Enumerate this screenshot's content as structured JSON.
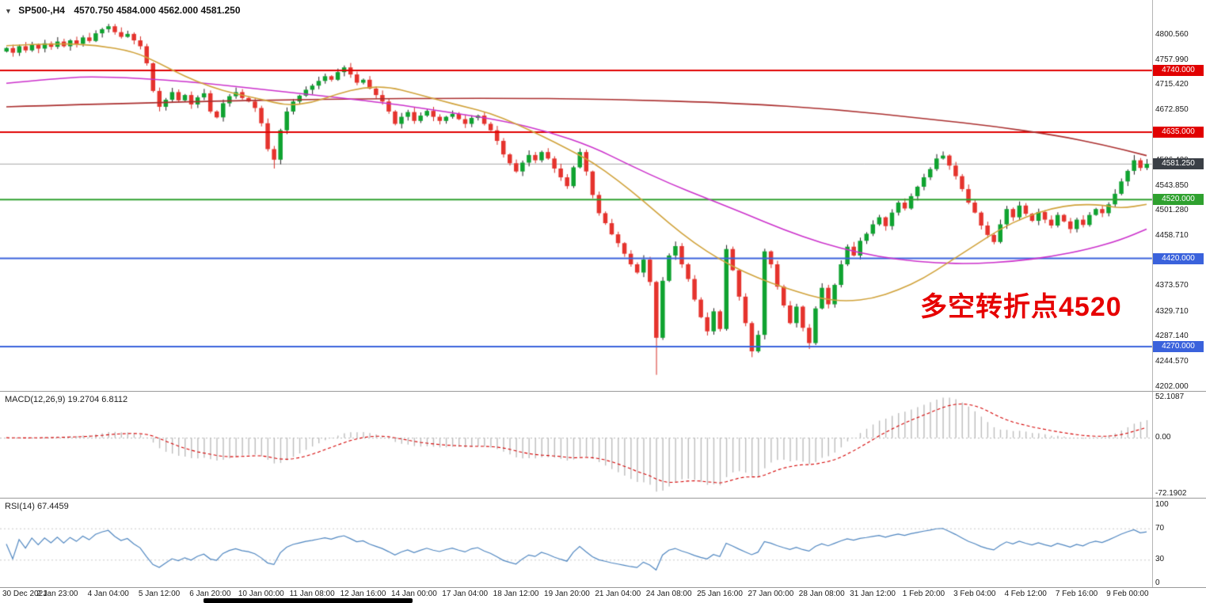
{
  "header": {
    "collapse_icon": "▼",
    "symbol_period": "SP500-,H4",
    "ohlc_line": "4570.750 4584.000 4562.000 4581.250"
  },
  "annotation": {
    "text": "多空转折点4520",
    "color": "#e60000"
  },
  "chart_data": {
    "type": "candlestick",
    "symbol": "SP500-",
    "timeframe": "H4",
    "open": "4570.750",
    "high": "4584.000",
    "low": "4562.000",
    "close": "4581.250",
    "ylim": [
      4202,
      4818
    ],
    "y_tick_labels": [
      "4800.560",
      "4757.990",
      "4715.420",
      "4672.850",
      "4628.990",
      "4586.420",
      "4543.850",
      "4501.280",
      "4458.710",
      "4416.140",
      "4373.570",
      "4329.710",
      "4287.140",
      "4244.570",
      "4202.000"
    ],
    "x_tick_labels": [
      "30 Dec 2021",
      "2 Jan 23:00",
      "4 Jan 04:00",
      "5 Jan 12:00",
      "6 Jan 20:00",
      "10 Jan 00:00",
      "11 Jan 08:00",
      "12 Jan 16:00",
      "14 Jan 00:00",
      "17 Jan 04:00",
      "18 Jan 12:00",
      "19 Jan 20:00",
      "21 Jan 04:00",
      "24 Jan 08:00",
      "25 Jan 16:00",
      "27 Jan 00:00",
      "28 Jan 08:00",
      "31 Jan 12:00",
      "1 Feb 20:00",
      "3 Feb 04:00",
      "4 Feb 12:00",
      "7 Feb 16:00",
      "9 Feb 00:00"
    ],
    "current_price": {
      "value": 4581.25,
      "label": "4581.250",
      "badge_color": "#3a3f46",
      "line_color": "#a6a6a6"
    },
    "horizontal_levels": [
      {
        "value": 4740,
        "label": "4740.000",
        "color": "#e10000"
      },
      {
        "value": 4635,
        "label": "4635.000",
        "color": "#e10000"
      },
      {
        "value": 4520,
        "label": "4520.000",
        "color": "#2fa12f"
      },
      {
        "value": 4420,
        "label": "4420.000",
        "color": "#3a62dc"
      },
      {
        "value": 4270,
        "label": "4270.000",
        "color": "#3a62dc"
      }
    ],
    "candle_colors": {
      "up": "#0fa330",
      "down": "#e5332d",
      "up_wick": "#1d1d1d",
      "down_wick": "#d42a24"
    },
    "closes": [
      4778,
      4770,
      4781,
      4774,
      4784,
      4777,
      4786,
      4780,
      4789,
      4781,
      4791,
      4785,
      4796,
      4790,
      4803,
      4810,
      4815,
      4805,
      4797,
      4802,
      4791,
      4781,
      4752,
      4705,
      4678,
      4690,
      4703,
      4689,
      4698,
      4682,
      4694,
      4701,
      4670,
      4660,
      4684,
      4696,
      4703,
      4693,
      4687,
      4676,
      4650,
      4606,
      4588,
      4638,
      4670,
      4687,
      4697,
      4707,
      4714,
      4722,
      4730,
      4724,
      4737,
      4745,
      4733,
      4719,
      4724,
      4709,
      4698,
      4687,
      4670,
      4649,
      4661,
      4669,
      4654,
      4663,
      4671,
      4661,
      4654,
      4661,
      4666,
      4657,
      4649,
      4659,
      4663,
      4649,
      4638,
      4620,
      4597,
      4582,
      4568,
      4583,
      4596,
      4587,
      4601,
      4590,
      4573,
      4558,
      4543,
      4575,
      4601,
      4568,
      4528,
      4497,
      4480,
      4461,
      4446,
      4428,
      4410,
      4396,
      4418,
      4380,
      4285,
      4382,
      4425,
      4441,
      4410,
      4385,
      4350,
      4320,
      4296,
      4330,
      4300,
      4436,
      4400,
      4355,
      4310,
      4262,
      4290,
      4432,
      4410,
      4372,
      4340,
      4310,
      4338,
      4302,
      4276,
      4335,
      4370,
      4342,
      4375,
      4410,
      4440,
      4425,
      4450,
      4462,
      4478,
      4490,
      4475,
      4498,
      4515,
      4505,
      4526,
      4542,
      4558,
      4572,
      4590,
      4595,
      4578,
      4560,
      4538,
      4515,
      4498,
      4476,
      4460,
      4448,
      4478,
      4504,
      4490,
      4510,
      4496,
      4484,
      4499,
      4486,
      4476,
      4494,
      4483,
      4470,
      4486,
      4477,
      4494,
      4504,
      4497,
      4512,
      4530,
      4551,
      4569,
      4587,
      4574,
      4581
    ],
    "wick_overrides": {
      "16": {
        "high": 4819
      },
      "42": {
        "low": 4573
      },
      "90": {
        "high": 4607
      },
      "102": {
        "low": 4222
      },
      "117": {
        "low": 4252
      },
      "126": {
        "low": 4266
      },
      "147": {
        "high": 4602
      },
      "177": {
        "high": 4596
      }
    },
    "moving_averages": [
      {
        "name": "ma-slow",
        "color": "#aa2e2e",
        "anchors": [
          [
            0,
            4678
          ],
          [
            25,
            4686
          ],
          [
            50,
            4691
          ],
          [
            75,
            4693
          ],
          [
            95,
            4691
          ],
          [
            115,
            4684
          ],
          [
            130,
            4674
          ],
          [
            145,
            4657
          ],
          [
            155,
            4645
          ],
          [
            165,
            4629
          ],
          [
            172,
            4614
          ],
          [
            179,
            4595
          ]
        ]
      },
      {
        "name": "ma-mid",
        "color": "#cb30cb",
        "anchors": [
          [
            0,
            4718
          ],
          [
            8,
            4726
          ],
          [
            14,
            4730
          ],
          [
            28,
            4722
          ],
          [
            45,
            4702
          ],
          [
            60,
            4684
          ],
          [
            70,
            4668
          ],
          [
            78,
            4654
          ],
          [
            85,
            4636
          ],
          [
            92,
            4610
          ],
          [
            98,
            4578
          ],
          [
            104,
            4548
          ],
          [
            110,
            4522
          ],
          [
            116,
            4496
          ],
          [
            122,
            4469
          ],
          [
            128,
            4446
          ],
          [
            134,
            4429
          ],
          [
            140,
            4418
          ],
          [
            146,
            4412
          ],
          [
            152,
            4411
          ],
          [
            158,
            4415
          ],
          [
            164,
            4423
          ],
          [
            170,
            4436
          ],
          [
            175,
            4452
          ],
          [
            179,
            4470
          ]
        ]
      },
      {
        "name": "ma-fast",
        "color": "#d0a23a",
        "anchors": [
          [
            0,
            4782
          ],
          [
            8,
            4786
          ],
          [
            14,
            4783
          ],
          [
            20,
            4772
          ],
          [
            24,
            4752
          ],
          [
            28,
            4730
          ],
          [
            32,
            4712
          ],
          [
            36,
            4700
          ],
          [
            40,
            4691
          ],
          [
            44,
            4680
          ],
          [
            48,
            4685
          ],
          [
            52,
            4700
          ],
          [
            56,
            4711
          ],
          [
            60,
            4712
          ],
          [
            64,
            4701
          ],
          [
            68,
            4689
          ],
          [
            72,
            4678
          ],
          [
            76,
            4667
          ],
          [
            80,
            4649
          ],
          [
            84,
            4629
          ],
          [
            88,
            4607
          ],
          [
            92,
            4584
          ],
          [
            96,
            4553
          ],
          [
            100,
            4518
          ],
          [
            104,
            4480
          ],
          [
            108,
            4446
          ],
          [
            112,
            4418
          ],
          [
            116,
            4396
          ],
          [
            120,
            4378
          ],
          [
            124,
            4364
          ],
          [
            128,
            4351
          ],
          [
            132,
            4347
          ],
          [
            136,
            4352
          ],
          [
            140,
            4366
          ],
          [
            144,
            4386
          ],
          [
            148,
            4414
          ],
          [
            152,
            4442
          ],
          [
            156,
            4470
          ],
          [
            160,
            4491
          ],
          [
            164,
            4505
          ],
          [
            168,
            4512
          ],
          [
            172,
            4511
          ],
          [
            175,
            4505
          ],
          [
            179,
            4512
          ]
        ]
      }
    ],
    "macd": {
      "label": "MACD(12,26,9)",
      "values_text": "19.2704 6.8112",
      "params": [
        12,
        26,
        9
      ],
      "axis_labels": [
        "52.1087",
        "0.00",
        "-72.1902"
      ],
      "axis_values": [
        52.1087,
        0,
        -72.1902
      ],
      "histogram_color": "#bcbcbc",
      "signal_color": "#d40000"
    },
    "rsi": {
      "label": "RSI(14)",
      "value_text": "67.4459",
      "period": 14,
      "axis_labels": [
        "100",
        "70",
        "30",
        "0"
      ],
      "axis_values": [
        100,
        70,
        30,
        0
      ],
      "levels": [
        70,
        30
      ],
      "line_color": "#4f86c0"
    }
  }
}
